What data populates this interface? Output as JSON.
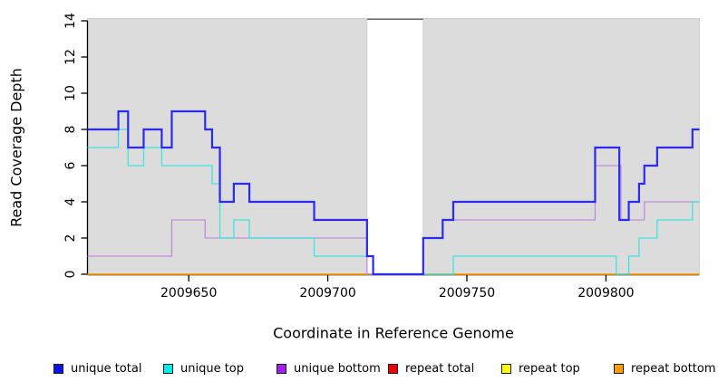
{
  "chart_data": {
    "type": "line",
    "step": true,
    "title": "",
    "xlabel": "Coordinate in Reference Genome",
    "ylabel": "Read Coverage Depth",
    "xlim": [
      2009613.6,
      2009833.6
    ],
    "ylim": [
      0,
      14.1
    ],
    "x_ticks": [
      2009650,
      2009700,
      2009750,
      2009800
    ],
    "y_ticks": [
      0,
      2,
      4,
      6,
      8,
      10,
      12,
      14
    ],
    "grid": false,
    "panel_color": "#DCDCDC",
    "panel_border_color": "#C9C9C9",
    "axis_color": "#000000",
    "gap_top_line_color": "#6E6E6E",
    "background_regions": [
      {
        "from": 2009613.6,
        "to": 2009714.1,
        "color": "#DCDCDC"
      },
      {
        "from": 2009734.3,
        "to": 2009833.6,
        "color": "#DCDCDC"
      }
    ],
    "coverage_gap_region": {
      "from": 2009714.1,
      "to": 2009734.3
    },
    "series": [
      {
        "name": "repeat total",
        "line_color": "#DD1111",
        "swatch_color": "#EE0000",
        "line_width": 1.2,
        "points": [
          [
            2009613.6,
            0
          ]
        ]
      },
      {
        "name": "repeat top",
        "line_color": "#EEEE22",
        "swatch_color": "#FFFF00",
        "line_width": 1.2,
        "points": [
          [
            2009613.6,
            0
          ]
        ]
      },
      {
        "name": "repeat bottom",
        "line_color": "#FF9E00",
        "swatch_color": "#FF9E00",
        "line_width": 1.6,
        "points": [
          [
            2009613.6,
            0
          ]
        ]
      },
      {
        "name": "unique bottom",
        "line_color": "#C18BDC",
        "swatch_color": "#A020F0",
        "line_width": 1.3,
        "points": [
          [
            2009613.6,
            1
          ],
          [
            2009643.9,
            3
          ],
          [
            2009655.9,
            2
          ],
          [
            2009714.1,
            0
          ],
          [
            2009734.3,
            2
          ],
          [
            2009741.3,
            3
          ],
          [
            2009796.1,
            6
          ],
          [
            2009805.4,
            3
          ],
          [
            2009813.8,
            4
          ]
        ]
      },
      {
        "name": "unique top",
        "line_color": "#3FE3E3",
        "swatch_color": "#00EEEE",
        "line_width": 1.3,
        "points": [
          [
            2009613.6,
            7
          ],
          [
            2009624.7,
            8
          ],
          [
            2009628.2,
            6
          ],
          [
            2009633.8,
            7
          ],
          [
            2009640.3,
            6
          ],
          [
            2009658.4,
            5
          ],
          [
            2009661.2,
            2
          ],
          [
            2009666.2,
            3
          ],
          [
            2009671.8,
            2
          ],
          [
            2009695.1,
            1
          ],
          [
            2009716.3,
            0
          ],
          [
            2009745.1,
            1
          ],
          [
            2009803.7,
            0
          ],
          [
            2009808.2,
            1
          ],
          [
            2009811.9,
            2
          ],
          [
            2009818.4,
            3
          ],
          [
            2009831.1,
            4
          ]
        ]
      },
      {
        "name": "unique total",
        "line_color": "#2B2BEF",
        "swatch_color": "#1111EE",
        "line_width": 2.2,
        "points": [
          [
            2009613.6,
            8
          ],
          [
            2009624.7,
            9
          ],
          [
            2009628.2,
            7
          ],
          [
            2009633.8,
            8
          ],
          [
            2009640.3,
            7
          ],
          [
            2009643.9,
            9
          ],
          [
            2009655.9,
            8
          ],
          [
            2009658.4,
            7
          ],
          [
            2009661.2,
            4
          ],
          [
            2009666.2,
            5
          ],
          [
            2009671.8,
            4
          ],
          [
            2009695.1,
            3
          ],
          [
            2009714.1,
            1
          ],
          [
            2009716.3,
            0
          ],
          [
            2009734.3,
            2
          ],
          [
            2009741.3,
            3
          ],
          [
            2009745.1,
            4
          ],
          [
            2009796.1,
            7
          ],
          [
            2009804.8,
            3
          ],
          [
            2009808.2,
            4
          ],
          [
            2009811.9,
            5
          ],
          [
            2009813.8,
            6
          ],
          [
            2009818.4,
            7
          ],
          [
            2009831.1,
            8
          ]
        ]
      }
    ],
    "legend": [
      {
        "label": "unique total",
        "color": "#1111EE"
      },
      {
        "label": "unique top",
        "color": "#00EEEE"
      },
      {
        "label": "unique bottom",
        "color": "#A020F0"
      },
      {
        "label": "repeat total",
        "color": "#EE0000"
      },
      {
        "label": "repeat top",
        "color": "#FFFF00"
      },
      {
        "label": "repeat bottom",
        "color": "#FF9E00"
      }
    ],
    "legend_position": "bottom"
  }
}
